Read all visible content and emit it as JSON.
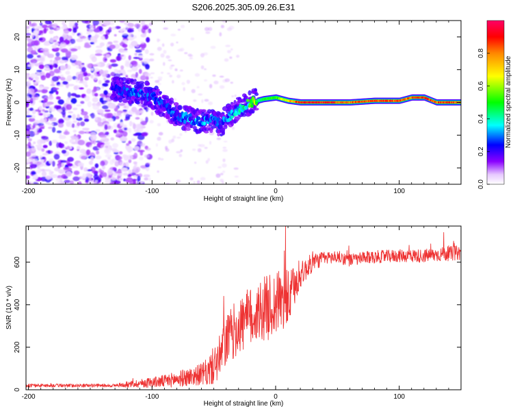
{
  "title": "S206.2025.305.09.26.E31",
  "chart_data": [
    {
      "type": "heatmap",
      "name": "spectrogram",
      "xlabel": "Height of straight line (km)",
      "ylabel": "Frequency (Hz)",
      "xlim": [
        -202,
        150
      ],
      "ylim": [
        -25,
        25
      ],
      "xticks": [
        -200,
        -100,
        0,
        100
      ],
      "xtick_labels": [
        "-200",
        "-100",
        "0",
        "100"
      ],
      "yticks": [
        -20,
        -10,
        0,
        10,
        20
      ],
      "ytick_labels": [
        "-20",
        "-10",
        "0",
        "10",
        "20"
      ],
      "colorbar": {
        "label": "Normalized spectral amplitude",
        "range": [
          0,
          1
        ],
        "ticks": [
          0.0,
          0.2,
          0.4,
          0.6,
          0.8
        ],
        "tick_labels": [
          "0.0",
          "0.2",
          "0.4",
          "0.6",
          "0.8"
        ]
      },
      "ridge": {
        "x": [
          -130,
          -110,
          -100,
          -90,
          -80,
          -70,
          -60,
          -50,
          -45,
          -40,
          -30,
          -20,
          -10,
          0,
          10,
          20,
          40,
          60,
          80,
          100,
          110,
          120,
          130,
          140,
          150
        ],
        "y": [
          4,
          3,
          2,
          -1,
          -4,
          -5,
          -6,
          -5,
          -7,
          -5,
          -2,
          0,
          1,
          1.5,
          0.5,
          0,
          0,
          0,
          0.5,
          0.5,
          1.5,
          1.5,
          0,
          0,
          0
        ],
        "amplitude": [
          0.2,
          0.22,
          0.22,
          0.2,
          0.22,
          0.24,
          0.25,
          0.22,
          0.2,
          0.25,
          0.3,
          0.4,
          0.5,
          0.55,
          0.7,
          0.95,
          0.95,
          0.85,
          0.9,
          0.9,
          0.85,
          0.95,
          0.85,
          0.9,
          0.85
        ]
      }
    },
    {
      "type": "line",
      "name": "snr",
      "xlabel": "Height of straight line (km)",
      "ylabel": "SNR (10 * v/v)",
      "xlim": [
        -202,
        150
      ],
      "ylim": [
        0,
        770
      ],
      "xticks": [
        -200,
        -100,
        0,
        100
      ],
      "xtick_labels": [
        "-200",
        "-100",
        "0",
        "100"
      ],
      "yticks": [
        0,
        200,
        400,
        600
      ],
      "ytick_labels": [
        "0",
        "200",
        "400",
        "600"
      ],
      "color": "#ee3333",
      "trend": {
        "x": [
          -202,
          -130,
          -110,
          -90,
          -70,
          -55,
          -45,
          -40,
          -30,
          -20,
          -10,
          0,
          10,
          20,
          30,
          40,
          50,
          60,
          80,
          100,
          120,
          140,
          150
        ],
        "y": [
          20,
          20,
          30,
          40,
          60,
          80,
          150,
          230,
          300,
          340,
          380,
          400,
          420,
          540,
          600,
          620,
          625,
          610,
          625,
          630,
          630,
          640,
          645
        ]
      },
      "noise_amp": {
        "x": [
          -202,
          -130,
          -110,
          -90,
          -60,
          -45,
          -30,
          -10,
          0,
          10,
          20,
          40,
          100,
          150
        ],
        "y": [
          8,
          8,
          20,
          30,
          50,
          110,
          140,
          150,
          160,
          140,
          60,
          30,
          30,
          35
        ]
      },
      "spikes": [
        {
          "x": -42,
          "y": 440
        },
        {
          "x": -22,
          "y": 440
        },
        {
          "x": 3,
          "y": 520
        },
        {
          "x": 8,
          "y": 770
        },
        {
          "x": 30,
          "y": 650
        },
        {
          "x": 108,
          "y": 680
        },
        {
          "x": 136,
          "y": 740
        }
      ]
    }
  ]
}
